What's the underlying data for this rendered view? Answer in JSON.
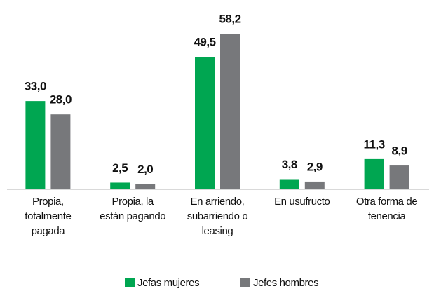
{
  "chart_data": {
    "type": "bar",
    "categories": [
      [
        "Propia,",
        "totalmente",
        "pagada"
      ],
      [
        "Propia, la",
        "están pagando"
      ],
      [
        "En arriendo,",
        "subarriendo o",
        "leasing"
      ],
      [
        "En usufructo"
      ],
      [
        "Otra forma de",
        "tenencia"
      ]
    ],
    "series": [
      {
        "name": "Jefas mujeres",
        "color": "#00a651",
        "values": [
          33.0,
          2.5,
          49.5,
          3.8,
          11.3
        ],
        "value_labels": [
          "33,0",
          "2,5",
          "49,5",
          "3,8",
          "11,3"
        ]
      },
      {
        "name": "Jefes hombres",
        "color": "#77787b",
        "values": [
          28.0,
          2.0,
          58.2,
          2.9,
          8.9
        ],
        "value_labels": [
          "28,0",
          "2,0",
          "58,2",
          "2,9",
          "8,9"
        ]
      }
    ],
    "legend": "bottom"
  }
}
